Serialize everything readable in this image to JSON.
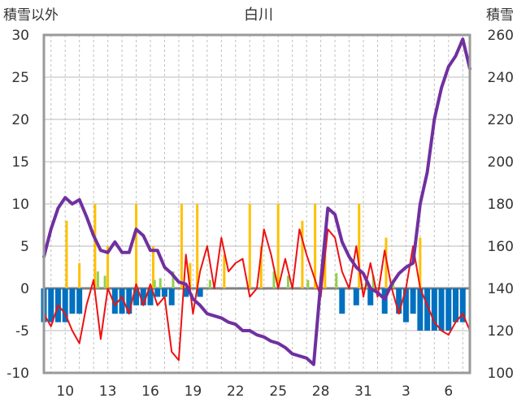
{
  "chart_data": {
    "type": "line",
    "title": "白川",
    "left_axis_label": "積雪以外",
    "right_axis_label": "積雪",
    "ylim_left": [
      -10,
      30
    ],
    "ylim_right": [
      100,
      260
    ],
    "yticks_left": [
      30,
      25,
      20,
      15,
      10,
      5,
      0,
      -5,
      -10
    ],
    "yticks_right": [
      260,
      240,
      220,
      200,
      180,
      160,
      140,
      120,
      100
    ],
    "x_tick_labels": [
      "10",
      "13",
      "16",
      "19",
      "22",
      "25",
      "28",
      "31",
      "3",
      "6"
    ],
    "grid": "vertical dashed (one per day), horizontal solid (one per 5 units)",
    "colors": {
      "temperature": "#ee1111",
      "snow_depth": "#7030a0",
      "sunshine": "#ffc000",
      "precipitation": "#92d050",
      "below_zero_bars": "#0070c0",
      "zero_line": "#808080"
    },
    "series": [
      {
        "id": "temperature",
        "axis": "left",
        "x": [
          0,
          0.5,
          1,
          1.5,
          2,
          2.5,
          3,
          3.5,
          4,
          4.5,
          5,
          5.5,
          6,
          6.5,
          7,
          7.5,
          8,
          8.5,
          9,
          9.5,
          10,
          10.5,
          11,
          11.5,
          12,
          12.5,
          13,
          13.5,
          14,
          14.5,
          15,
          15.5,
          16,
          16.5,
          17,
          17.5,
          18,
          18.5,
          19,
          19.5,
          20,
          20.5,
          21,
          21.5,
          22,
          22.5,
          23,
          23.5,
          24,
          24.5,
          25,
          25.5,
          26,
          26.5,
          27,
          27.5,
          28,
          28.5,
          29,
          29.5,
          30
        ],
        "values": [
          -3,
          -4.5,
          -2,
          -3,
          -5,
          -6.5,
          -2,
          1,
          -6,
          0,
          -2,
          -1,
          -3,
          0.5,
          -2,
          0.5,
          -2,
          -1,
          -7.5,
          -8.5,
          4,
          -3,
          2,
          5,
          0,
          6,
          2,
          3,
          3.5,
          -1,
          0,
          7,
          4,
          0,
          3.5,
          0,
          7,
          4,
          1.5,
          -1,
          7,
          6,
          2,
          0,
          5,
          -1,
          3,
          -1,
          4.5,
          0,
          -3,
          0,
          5,
          0,
          -2,
          -4,
          -5,
          -5.5,
          -4,
          -3,
          -5
        ]
      },
      {
        "id": "snow_depth",
        "axis": "right",
        "x": [
          0,
          0.5,
          1,
          1.5,
          2,
          2.5,
          3,
          3.5,
          4,
          4.5,
          5,
          5.5,
          6,
          6.5,
          7,
          7.5,
          8,
          8.5,
          9,
          9.5,
          10,
          10.5,
          11,
          11.5,
          12,
          12.5,
          13,
          13.5,
          14,
          14.5,
          15,
          15.5,
          16,
          16.5,
          17,
          17.5,
          18,
          18.5,
          19,
          19.5,
          20,
          20.5,
          21,
          21.5,
          22,
          22.5,
          23,
          23.5,
          24,
          24.5,
          25,
          25.5,
          26,
          26.5,
          27,
          27.5,
          28,
          28.5,
          29,
          29.5,
          30
        ],
        "values": [
          155,
          168,
          178,
          183,
          180,
          182,
          174,
          165,
          158,
          157,
          162,
          157,
          157,
          168,
          165,
          158,
          158,
          150,
          147,
          143,
          142,
          135,
          132,
          128,
          127,
          126,
          124,
          123,
          120,
          120,
          118,
          117,
          115,
          114,
          112,
          109,
          108,
          107,
          104,
          143,
          178,
          175,
          162,
          155,
          150,
          147,
          140,
          138,
          135,
          142,
          147,
          150,
          152,
          180,
          195,
          220,
          235,
          245,
          250,
          258,
          244
        ]
      },
      {
        "id": "sunshine",
        "axis": "left",
        "type": "bar",
        "x": [
          1.6,
          2.5,
          3.6,
          4.5,
          6.5,
          7.7,
          9.7,
          10.3,
          10.8,
          12.7,
          14.5,
          15.3,
          16.5,
          18.2,
          19.1,
          19.8,
          22.2,
          24.1,
          26.5
        ],
        "values": [
          8,
          3,
          10,
          5,
          10,
          5,
          10,
          3,
          10,
          4,
          10,
          5,
          10,
          8,
          10,
          4,
          10,
          6,
          6
        ]
      },
      {
        "id": "precipitation",
        "axis": "left",
        "type": "bar",
        "x": [
          3.8,
          4.3,
          7.8,
          8.2,
          9.1,
          11.7,
          16.2,
          17.2,
          18.6,
          20.6,
          22.7,
          23.2,
          24.6
        ],
        "values": [
          2,
          1.5,
          1,
          1.2,
          2,
          1,
          2,
          1.5,
          1,
          1.8,
          1,
          1.5,
          0.6
        ]
      },
      {
        "id": "below_zero_bars",
        "axis": "left",
        "type": "bar",
        "x": [
          0,
          0.5,
          1,
          1.5,
          2,
          2.5,
          5,
          5.5,
          6,
          6.5,
          7,
          7.5,
          8,
          8.5,
          9,
          10,
          11,
          21,
          22,
          23,
          24,
          25,
          25.5,
          26,
          26.5,
          27,
          27.5,
          28,
          28.5,
          29,
          29.5
        ],
        "values": [
          -4,
          -4,
          -4,
          -4,
          -3,
          -3,
          -3,
          -3,
          -3,
          -2,
          -2,
          -2,
          -1,
          -1,
          -2,
          -1,
          -1,
          -3,
          -2,
          -2,
          -3,
          -3,
          -4,
          -3,
          -5,
          -5,
          -5,
          -5,
          -5,
          -4,
          -4
        ]
      }
    ]
  }
}
